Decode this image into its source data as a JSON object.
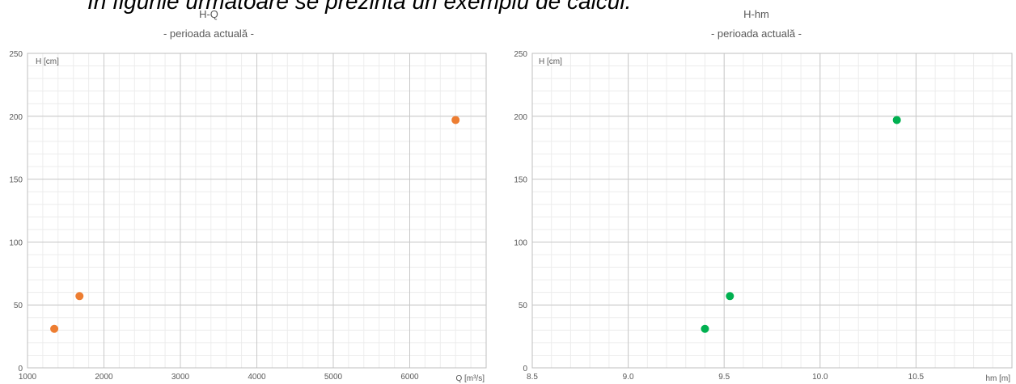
{
  "header_text": "În figurile următoare se prezintă un exemplu de calcul.",
  "chart_data": [
    {
      "type": "scatter",
      "title": "H-Q",
      "subtitle": "- perioada actuală -",
      "xlabel": "Q [m³/s]",
      "ylabel": "H [cm]",
      "xlim": [
        1000,
        7000
      ],
      "ylim": [
        0,
        250
      ],
      "xticks": [
        "1000",
        "2000",
        "3000",
        "4000",
        "5000",
        "6000"
      ],
      "yticks": [
        "0",
        "50",
        "100",
        "150",
        "200",
        "250"
      ],
      "grid": true,
      "color": "#ed7d31",
      "points": [
        {
          "x": 1350,
          "y": 31
        },
        {
          "x": 1680,
          "y": 57
        },
        {
          "x": 6600,
          "y": 197
        }
      ]
    },
    {
      "type": "scatter",
      "title": "H-hm",
      "subtitle": "- perioada actuală -",
      "xlabel": "hm [m]",
      "ylabel": "H [cm]",
      "xlim": [
        8.5,
        11.0
      ],
      "ylim": [
        0,
        250
      ],
      "xticks": [
        "8.5",
        "9.0",
        "9.5",
        "10.0",
        "10.5"
      ],
      "yticks": [
        "0",
        "50",
        "100",
        "150",
        "200",
        "250"
      ],
      "grid": true,
      "color": "#00b050",
      "points": [
        {
          "x": 9.4,
          "y": 31
        },
        {
          "x": 9.53,
          "y": 57
        },
        {
          "x": 10.4,
          "y": 197
        }
      ]
    }
  ]
}
